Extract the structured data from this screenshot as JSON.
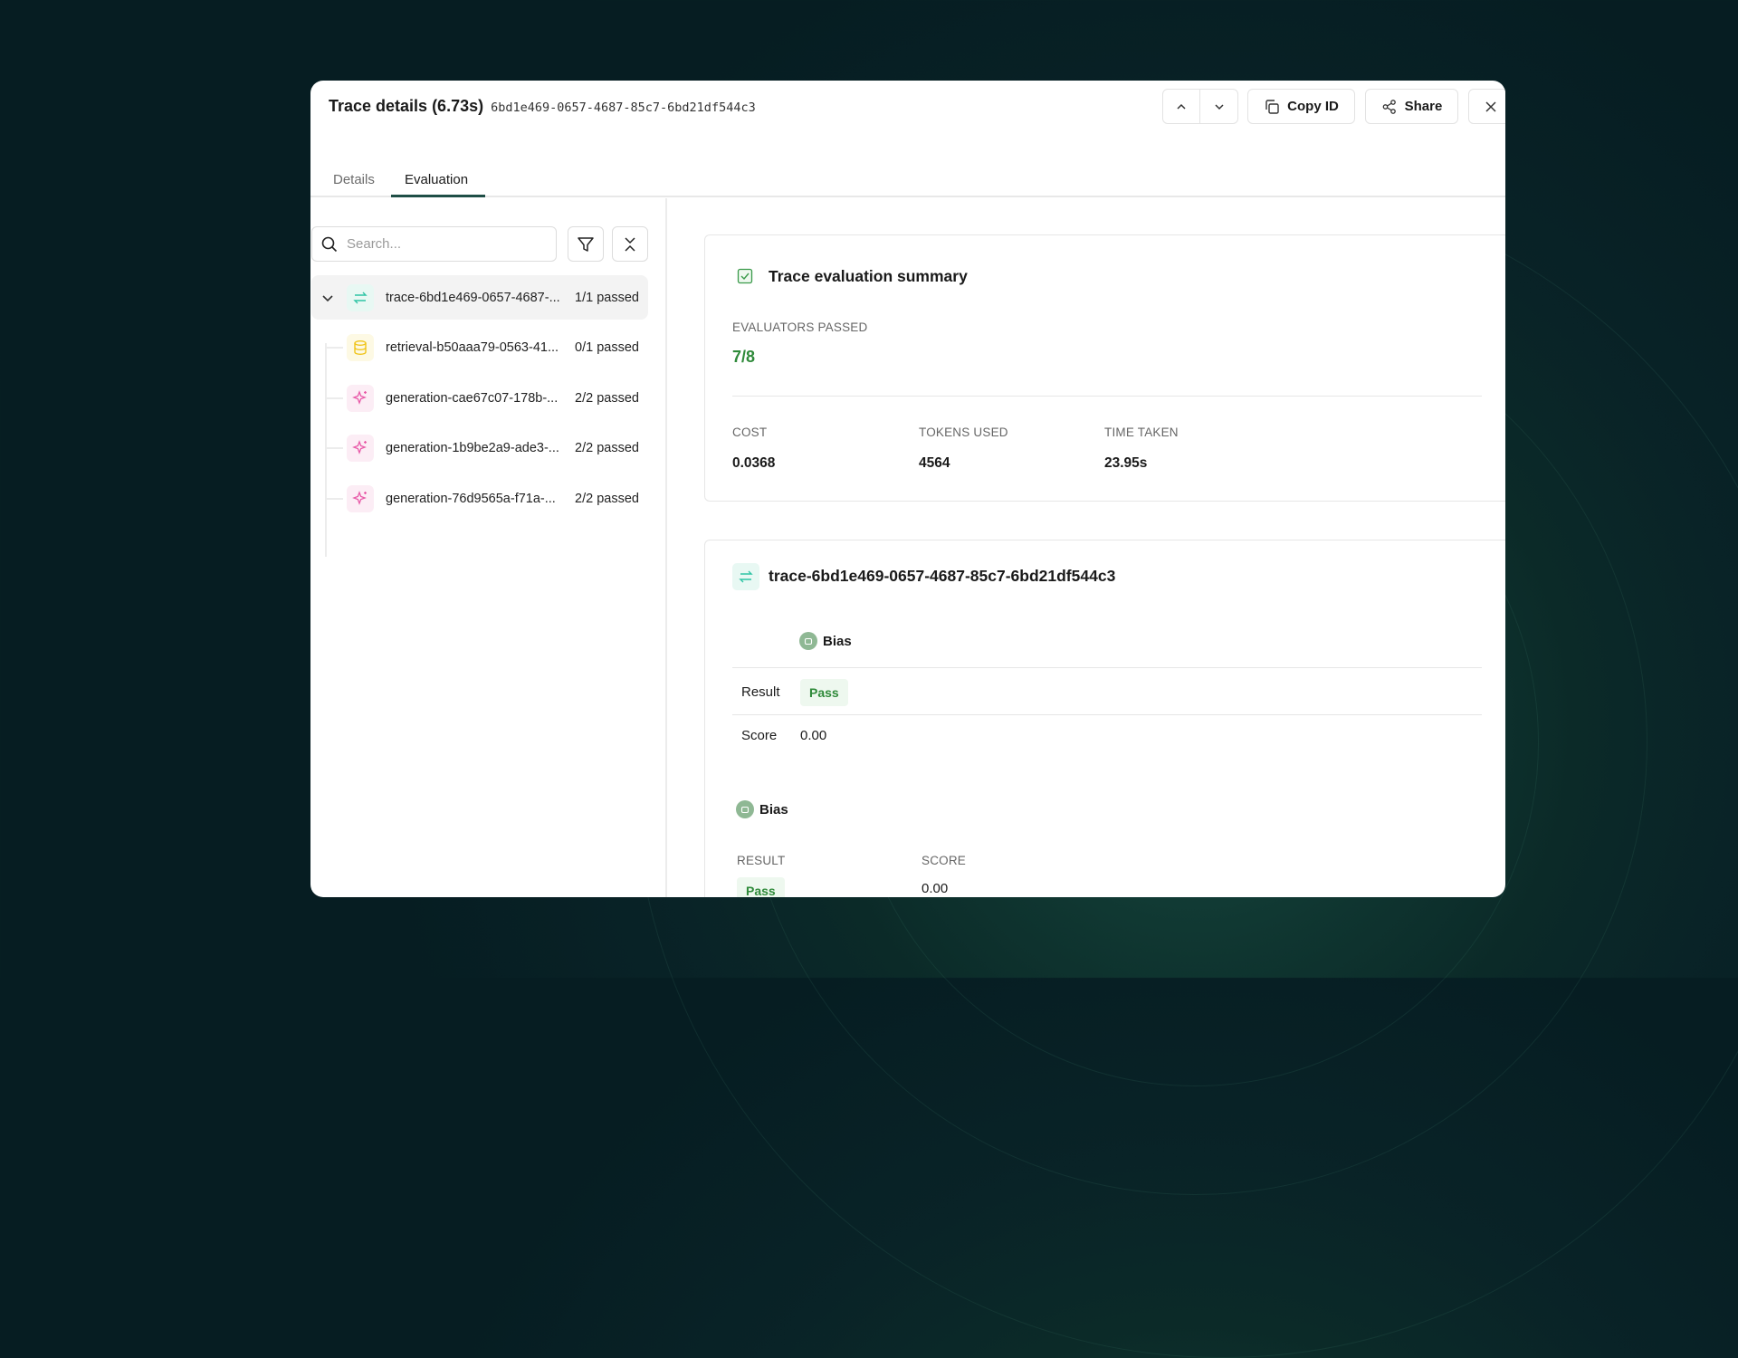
{
  "header": {
    "title": "Trace details (6.73s)",
    "trace_id": "6bd1e469-0657-4687-85c7-6bd21df544c3",
    "copy_label": "Copy ID",
    "share_label": "Share"
  },
  "tabs": [
    {
      "label": "Details",
      "active": false
    },
    {
      "label": "Evaluation",
      "active": true
    }
  ],
  "search": {
    "placeholder": "Search...",
    "value": ""
  },
  "tree": [
    {
      "name": "trace-6bd1e469-0657-4687-...",
      "status": "1/1 passed",
      "icon": "arrows-swap-icon",
      "color": "#2ec4a5"
    },
    {
      "name": "retrieval-b50aaa79-0563-41...",
      "status": "0/1 passed",
      "icon": "database-icon",
      "color": "#f0c419"
    },
    {
      "name": "generation-cae67c07-178b-...",
      "status": "2/2 passed",
      "icon": "sparkle-icon",
      "color": "#e85aa8"
    },
    {
      "name": "generation-1b9be2a9-ade3-...",
      "status": "2/2 passed",
      "icon": "sparkle-icon",
      "color": "#e85aa8"
    },
    {
      "name": "generation-76d9565a-f71a-...",
      "status": "2/2 passed",
      "icon": "sparkle-icon",
      "color": "#e85aa8"
    }
  ],
  "summary": {
    "title": "Trace evaluation summary",
    "evaluators_label": "EVALUATORS PASSED",
    "evaluators_value": "7/8",
    "cost_label": "COST",
    "cost": "0.0368",
    "tokens_label": "TOKENS USED",
    "tokens": "4564",
    "time_label": "TIME TAKEN",
    "time": "23.95s"
  },
  "trace_card": {
    "title": "trace-6bd1e469-0657-4687-85c7-6bd21df544c3",
    "eval1": {
      "name": "Bias",
      "result_label": "Result",
      "result": "Pass",
      "score_label": "Score",
      "score": "0.00"
    },
    "eval2": {
      "name": "Bias",
      "result_label": "RESULT",
      "result": "Pass",
      "score_label": "SCORE",
      "score": "0.00"
    }
  },
  "colors": {
    "pass_green": "#2f8a3a",
    "accent": "#1f4e46"
  }
}
